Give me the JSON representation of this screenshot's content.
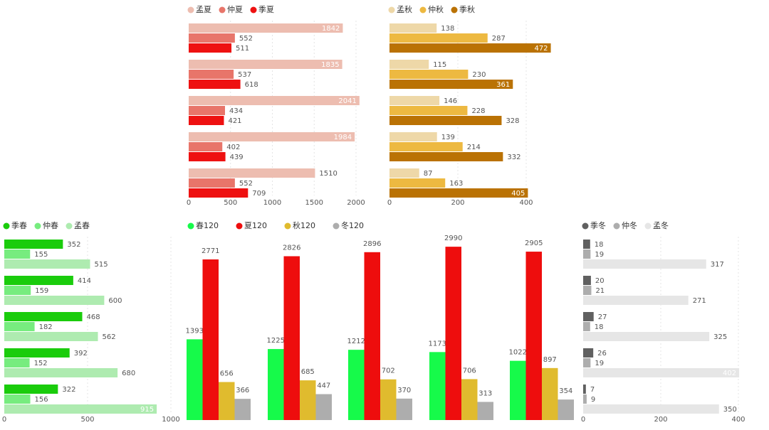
{
  "chart_data": [
    {
      "type": "bar",
      "orientation": "horizontal",
      "panel": "summer",
      "legend_position": "top-left",
      "grid": true,
      "xlim": [
        0,
        2200
      ],
      "ticks": [
        0,
        500,
        1000,
        1500,
        2000
      ],
      "series": [
        {
          "name": "孟夏",
          "color": "#EDBDB0",
          "values": [
            1842,
            1835,
            2041,
            1984,
            1510
          ]
        },
        {
          "name": "仲夏",
          "color": "#E8756A",
          "values": [
            552,
            537,
            434,
            402,
            552
          ]
        },
        {
          "name": "季夏",
          "color": "#EE1111",
          "values": [
            511,
            618,
            421,
            439,
            709
          ]
        }
      ]
    },
    {
      "type": "bar",
      "orientation": "horizontal",
      "panel": "autumn",
      "legend_position": "top-left",
      "grid": true,
      "xlim": [
        0,
        500
      ],
      "ticks": [
        0,
        200,
        400
      ],
      "series": [
        {
          "name": "孟秋",
          "color": "#EED8A8",
          "values": [
            138,
            115,
            146,
            139,
            87
          ]
        },
        {
          "name": "仲秋",
          "color": "#EDB941",
          "values": [
            287,
            230,
            228,
            214,
            163
          ]
        },
        {
          "name": "季秋",
          "color": "#BA7204",
          "values": [
            472,
            361,
            328,
            332,
            405
          ]
        }
      ]
    },
    {
      "type": "bar",
      "orientation": "horizontal",
      "panel": "spring",
      "legend_position": "top-left",
      "grid": true,
      "xlim": [
        0,
        1000
      ],
      "ticks": [
        0,
        500,
        1000
      ],
      "series": [
        {
          "name": "季春",
          "color": "#1ACC0C",
          "values": [
            352,
            414,
            468,
            392,
            322
          ]
        },
        {
          "name": "仲春",
          "color": "#77EC7F",
          "values": [
            155,
            159,
            182,
            152,
            156
          ]
        },
        {
          "name": "孟春",
          "color": "#AEEBB0",
          "values": [
            515,
            600,
            562,
            680,
            915
          ]
        }
      ]
    },
    {
      "type": "bar",
      "orientation": "vertical",
      "panel": "annual",
      "legend_position": "top-left",
      "grid": false,
      "ylim": [
        0,
        3200
      ],
      "series": [
        {
          "name": "春120",
          "color": "#16FA4A",
          "values": [
            1393,
            1225,
            1212,
            1173,
            1022
          ]
        },
        {
          "name": "夏120",
          "color": "#EE0D0D",
          "values": [
            2771,
            2826,
            2896,
            2990,
            2905
          ]
        },
        {
          "name": "秋120",
          "color": "#E0BB2E",
          "values": [
            656,
            685,
            702,
            706,
            897
          ]
        },
        {
          "name": "冬120",
          "color": "#ADADAD",
          "values": [
            366,
            447,
            370,
            313,
            354
          ]
        }
      ]
    },
    {
      "type": "bar",
      "orientation": "horizontal",
      "panel": "winter",
      "legend_position": "top-left",
      "grid": true,
      "xlim": [
        0,
        400
      ],
      "ticks": [
        0,
        200,
        400
      ],
      "series": [
        {
          "name": "季冬",
          "color": "#606060",
          "values": [
            18,
            20,
            27,
            26,
            7
          ]
        },
        {
          "name": "仲冬",
          "color": "#ADADAD",
          "values": [
            19,
            21,
            18,
            19,
            9
          ]
        },
        {
          "name": "孟冬",
          "color": "#E6E6E6",
          "values": [
            317,
            271,
            325,
            402,
            350
          ]
        }
      ]
    }
  ]
}
